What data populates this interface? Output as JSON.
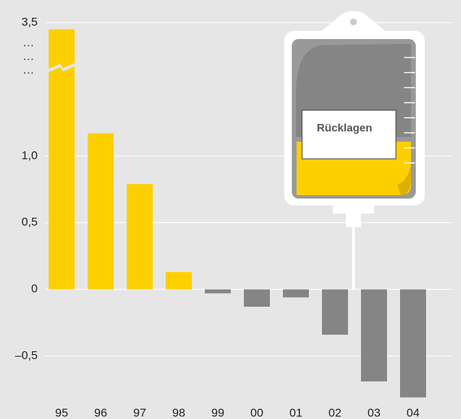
{
  "chart_data": {
    "type": "bar",
    "categories": [
      "95",
      "96",
      "97",
      "98",
      "99",
      "00",
      "01",
      "02",
      "03",
      "04"
    ],
    "values": [
      3.45,
      1.17,
      0.79,
      0.13,
      -0.03,
      -0.13,
      -0.06,
      -0.34,
      -0.69,
      -0.81
    ],
    "color_positive": "#fcd000",
    "color_negative": "#858585",
    "ylim": [
      -0.9,
      3.5
    ],
    "yticks": [
      {
        "value": 3.5,
        "label": "3,5"
      },
      {
        "value": 1.0,
        "label": "1,0"
      },
      {
        "value": 0.5,
        "label": "0,5"
      },
      0,
      {
        "value": -0.5,
        "label": "–0,5"
      }
    ],
    "axis_break": [
      1.65,
      3.15
    ],
    "break_labels": [
      "…",
      "…",
      "…"
    ],
    "grid": true,
    "annotation": "Rücklagen"
  }
}
